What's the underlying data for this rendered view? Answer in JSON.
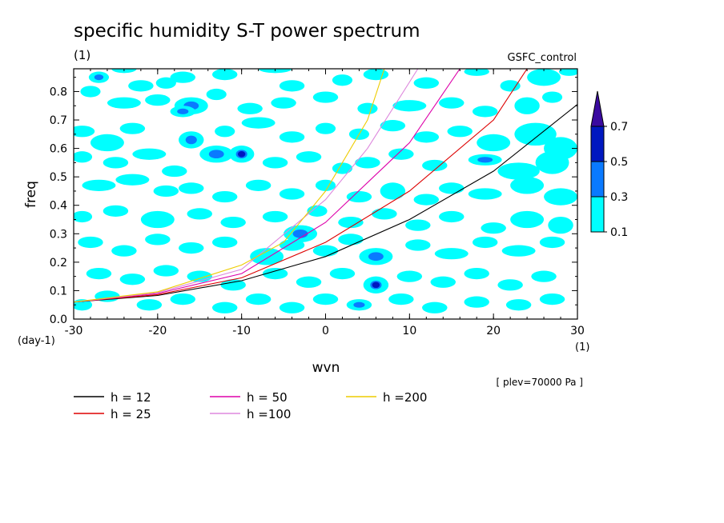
{
  "header": {
    "title": "specific humidity S-T power spectrum",
    "units": "(1)",
    "case_name": "GSFC_control"
  },
  "footer": {
    "level": "[ plev=70000 Pa ]",
    "x_unit": "(1)",
    "y_unit": "(day-1)"
  },
  "chart_data": {
    "type": "contour",
    "title": "specific humidity S-T power spectrum",
    "xlabel": "wvn",
    "ylabel": "freq",
    "xlim": [
      -30,
      30
    ],
    "ylim": [
      0,
      0.88
    ],
    "xticks": [
      "-30",
      "-20",
      "-10",
      "0",
      "10",
      "20",
      "30"
    ],
    "yticks": [
      "0.0",
      "0.1",
      "0.2",
      "0.3",
      "0.4",
      "0.5",
      "0.6",
      "0.7",
      "0.8"
    ],
    "ytick_values": [
      0,
      0.1,
      0.2,
      0.3,
      0.4,
      0.5,
      0.6,
      0.7,
      0.8
    ],
    "xtick_values": [
      -30,
      -20,
      -10,
      0,
      10,
      20,
      30
    ],
    "colorbar": {
      "levels": [
        "0.1",
        "0.3",
        "0.5",
        "0.7"
      ],
      "colors": [
        "#00ffff",
        "#0a7aff",
        "#0018c0",
        "#3a0aa0"
      ]
    },
    "dispersion_curves": [
      {
        "name": "h = 12",
        "color": "#000000",
        "points": [
          [
            -30,
            0.06
          ],
          [
            -20,
            0.083
          ],
          [
            -10,
            0.135
          ],
          [
            0,
            0.22
          ],
          [
            10,
            0.35
          ],
          [
            20,
            0.52
          ],
          [
            30,
            0.755
          ]
        ]
      },
      {
        "name": "h = 25",
        "color": "#dd0000",
        "points": [
          [
            -30,
            0.06
          ],
          [
            -20,
            0.086
          ],
          [
            -10,
            0.145
          ],
          [
            0,
            0.27
          ],
          [
            10,
            0.45
          ],
          [
            20,
            0.7
          ],
          [
            24,
            0.88
          ]
        ]
      },
      {
        "name": "h = 50",
        "color": "#dd00aa",
        "points": [
          [
            -30,
            0.06
          ],
          [
            -20,
            0.09
          ],
          [
            -10,
            0.16
          ],
          [
            0,
            0.34
          ],
          [
            10,
            0.62
          ],
          [
            16,
            0.88
          ]
        ]
      },
      {
        "name": "h =100",
        "color": "#dd88dd",
        "points": [
          [
            -30,
            0.06
          ],
          [
            -20,
            0.093
          ],
          [
            -10,
            0.175
          ],
          [
            0,
            0.42
          ],
          [
            5,
            0.6
          ],
          [
            11,
            0.88
          ]
        ]
      },
      {
        "name": "h =200",
        "color": "#eecc00",
        "points": [
          [
            -30,
            0.06
          ],
          [
            -20,
            0.096
          ],
          [
            -10,
            0.19
          ],
          [
            -5,
            0.27
          ],
          [
            0,
            0.45
          ],
          [
            5,
            0.7
          ],
          [
            7,
            0.88
          ]
        ]
      }
    ],
    "contour_blobs": [
      [
        -27,
        0.85,
        1.2,
        0.02,
        1
      ],
      [
        -24,
        0.88,
        1.5,
        0.015,
        0
      ],
      [
        -22,
        0.82,
        1.5,
        0.02,
        0
      ],
      [
        -19,
        0.83,
        1.2,
        0.02,
        0
      ],
      [
        -17,
        0.85,
        1.5,
        0.02,
        0
      ],
      [
        -12,
        0.86,
        1.5,
        0.02,
        0
      ],
      [
        -6,
        0.88,
        2,
        0.015,
        0
      ],
      [
        -4,
        0.82,
        1.5,
        0.02,
        0
      ],
      [
        2,
        0.84,
        1.2,
        0.02,
        0
      ],
      [
        6,
        0.86,
        1.5,
        0.02,
        0
      ],
      [
        12,
        0.83,
        1.5,
        0.02,
        0
      ],
      [
        18,
        0.87,
        1.5,
        0.015,
        0
      ],
      [
        22,
        0.82,
        1.2,
        0.02,
        0
      ],
      [
        26,
        0.85,
        2,
        0.03,
        0
      ],
      [
        29,
        0.87,
        1.2,
        0.015,
        0
      ],
      [
        -28,
        0.8,
        1.2,
        0.02,
        0
      ],
      [
        -24,
        0.76,
        2,
        0.02,
        0
      ],
      [
        -20,
        0.77,
        1.5,
        0.02,
        0
      ],
      [
        -16,
        0.75,
        2,
        0.03,
        1
      ],
      [
        -13,
        0.79,
        1.2,
        0.02,
        0
      ],
      [
        -9,
        0.74,
        1.5,
        0.02,
        0
      ],
      [
        -5,
        0.76,
        1.5,
        0.02,
        0
      ],
      [
        0,
        0.78,
        1.5,
        0.02,
        0
      ],
      [
        5,
        0.74,
        1.2,
        0.02,
        0
      ],
      [
        10,
        0.75,
        2,
        0.02,
        0
      ],
      [
        15,
        0.76,
        1.5,
        0.02,
        0
      ],
      [
        19,
        0.73,
        1.5,
        0.02,
        0
      ],
      [
        24,
        0.75,
        1.5,
        0.03,
        0
      ],
      [
        27,
        0.78,
        1.2,
        0.02,
        0
      ],
      [
        -29,
        0.66,
        1.5,
        0.02,
        0
      ],
      [
        -26,
        0.62,
        2,
        0.03,
        0
      ],
      [
        -23,
        0.67,
        1.5,
        0.02,
        0
      ],
      [
        -17,
        0.73,
        1.5,
        0.02,
        1
      ],
      [
        -16,
        0.63,
        1.5,
        0.03,
        1
      ],
      [
        -12,
        0.66,
        1.2,
        0.02,
        0
      ],
      [
        -8,
        0.69,
        2,
        0.02,
        0
      ],
      [
        -4,
        0.64,
        1.5,
        0.02,
        0
      ],
      [
        0,
        0.67,
        1.2,
        0.02,
        0
      ],
      [
        4,
        0.65,
        1.2,
        0.02,
        0
      ],
      [
        8,
        0.68,
        1.5,
        0.02,
        0
      ],
      [
        12,
        0.64,
        1.5,
        0.02,
        0
      ],
      [
        16,
        0.66,
        1.5,
        0.02,
        0
      ],
      [
        20,
        0.62,
        2,
        0.03,
        0
      ],
      [
        25,
        0.65,
        2.5,
        0.04,
        0
      ],
      [
        28,
        0.6,
        2,
        0.04,
        0
      ],
      [
        -29,
        0.57,
        1.2,
        0.02,
        0
      ],
      [
        -25,
        0.55,
        1.5,
        0.02,
        0
      ],
      [
        -21,
        0.58,
        2,
        0.02,
        0
      ],
      [
        -18,
        0.52,
        1.5,
        0.02,
        0
      ],
      [
        -13,
        0.58,
        2,
        0.03,
        1
      ],
      [
        -10,
        0.58,
        1.5,
        0.03,
        2
      ],
      [
        -6,
        0.55,
        1.5,
        0.02,
        0
      ],
      [
        -2,
        0.57,
        1.5,
        0.02,
        0
      ],
      [
        2,
        0.53,
        1.2,
        0.02,
        0
      ],
      [
        5,
        0.55,
        1.5,
        0.02,
        0
      ],
      [
        9,
        0.58,
        1.5,
        0.02,
        0
      ],
      [
        13,
        0.54,
        1.5,
        0.02,
        0
      ],
      [
        19,
        0.56,
        2,
        0.02,
        1
      ],
      [
        23,
        0.52,
        2.5,
        0.03,
        0
      ],
      [
        27,
        0.55,
        2,
        0.04,
        0
      ],
      [
        -27,
        0.47,
        2,
        0.02,
        0
      ],
      [
        -23,
        0.49,
        2,
        0.02,
        0
      ],
      [
        -19,
        0.45,
        1.5,
        0.02,
        0
      ],
      [
        -16,
        0.46,
        1.5,
        0.02,
        0
      ],
      [
        -12,
        0.43,
        1.5,
        0.02,
        0
      ],
      [
        -8,
        0.47,
        1.5,
        0.02,
        0
      ],
      [
        -4,
        0.44,
        1.5,
        0.02,
        0
      ],
      [
        0,
        0.47,
        1.2,
        0.02,
        0
      ],
      [
        4,
        0.43,
        1.5,
        0.02,
        0
      ],
      [
        8,
        0.45,
        1.5,
        0.03,
        0
      ],
      [
        12,
        0.42,
        1.5,
        0.02,
        0
      ],
      [
        15,
        0.46,
        1.5,
        0.02,
        0
      ],
      [
        19,
        0.44,
        2,
        0.02,
        0
      ],
      [
        24,
        0.47,
        2,
        0.03,
        0
      ],
      [
        28,
        0.43,
        2,
        0.03,
        0
      ],
      [
        -29,
        0.36,
        1.2,
        0.02,
        0
      ],
      [
        -25,
        0.38,
        1.5,
        0.02,
        0
      ],
      [
        -20,
        0.35,
        2,
        0.03,
        0
      ],
      [
        -15,
        0.37,
        1.5,
        0.02,
        0
      ],
      [
        -11,
        0.34,
        1.5,
        0.02,
        0
      ],
      [
        -6,
        0.36,
        1.5,
        0.02,
        0
      ],
      [
        -3,
        0.3,
        2,
        0.03,
        1
      ],
      [
        -1,
        0.38,
        1.2,
        0.02,
        0
      ],
      [
        3,
        0.34,
        1.5,
        0.02,
        0
      ],
      [
        7,
        0.37,
        1.5,
        0.02,
        0
      ],
      [
        11,
        0.33,
        1.5,
        0.02,
        0
      ],
      [
        15,
        0.36,
        1.5,
        0.02,
        0
      ],
      [
        20,
        0.32,
        1.5,
        0.02,
        0
      ],
      [
        24,
        0.35,
        2,
        0.03,
        0
      ],
      [
        28,
        0.33,
        1.5,
        0.03,
        0
      ],
      [
        -28,
        0.27,
        1.5,
        0.02,
        0
      ],
      [
        -24,
        0.24,
        1.5,
        0.02,
        0
      ],
      [
        -20,
        0.28,
        1.5,
        0.02,
        0
      ],
      [
        -16,
        0.25,
        1.5,
        0.02,
        0
      ],
      [
        -12,
        0.27,
        1.5,
        0.02,
        0
      ],
      [
        -7,
        0.22,
        2,
        0.03,
        0
      ],
      [
        -4,
        0.26,
        1.5,
        0.02,
        0
      ],
      [
        0,
        0.24,
        1.5,
        0.02,
        0
      ],
      [
        3,
        0.28,
        1.5,
        0.02,
        0
      ],
      [
        6,
        0.22,
        2,
        0.03,
        1
      ],
      [
        11,
        0.26,
        1.5,
        0.02,
        0
      ],
      [
        15,
        0.23,
        2,
        0.02,
        0
      ],
      [
        19,
        0.27,
        1.5,
        0.02,
        0
      ],
      [
        23,
        0.24,
        2,
        0.02,
        0
      ],
      [
        27,
        0.27,
        1.5,
        0.02,
        0
      ],
      [
        -27,
        0.16,
        1.5,
        0.02,
        0
      ],
      [
        -23,
        0.14,
        1.5,
        0.02,
        0
      ],
      [
        -19,
        0.17,
        1.5,
        0.02,
        0
      ],
      [
        -15,
        0.15,
        1.5,
        0.02,
        0
      ],
      [
        -11,
        0.12,
        1.5,
        0.02,
        0
      ],
      [
        -6,
        0.16,
        1.5,
        0.02,
        0
      ],
      [
        -2,
        0.13,
        1.5,
        0.02,
        0
      ],
      [
        2,
        0.16,
        1.5,
        0.02,
        0
      ],
      [
        6,
        0.12,
        1.5,
        0.03,
        2
      ],
      [
        10,
        0.15,
        1.5,
        0.02,
        0
      ],
      [
        14,
        0.13,
        1.5,
        0.02,
        0
      ],
      [
        18,
        0.16,
        1.5,
        0.02,
        0
      ],
      [
        22,
        0.12,
        1.5,
        0.02,
        0
      ],
      [
        26,
        0.15,
        1.5,
        0.02,
        0
      ],
      [
        -29,
        0.05,
        1.2,
        0.02,
        0
      ],
      [
        -26,
        0.08,
        1.5,
        0.02,
        0
      ],
      [
        -21,
        0.05,
        1.5,
        0.02,
        0
      ],
      [
        -17,
        0.07,
        1.5,
        0.02,
        0
      ],
      [
        -12,
        0.04,
        1.5,
        0.02,
        0
      ],
      [
        -8,
        0.07,
        1.5,
        0.02,
        0
      ],
      [
        -4,
        0.04,
        1.5,
        0.02,
        0
      ],
      [
        0,
        0.07,
        1.5,
        0.02,
        0
      ],
      [
        4,
        0.05,
        1.5,
        0.02,
        1
      ],
      [
        9,
        0.07,
        1.5,
        0.02,
        0
      ],
      [
        13,
        0.04,
        1.5,
        0.02,
        0
      ],
      [
        18,
        0.06,
        1.5,
        0.02,
        0
      ],
      [
        23,
        0.05,
        1.5,
        0.02,
        0
      ],
      [
        27,
        0.07,
        1.5,
        0.02,
        0
      ]
    ]
  }
}
